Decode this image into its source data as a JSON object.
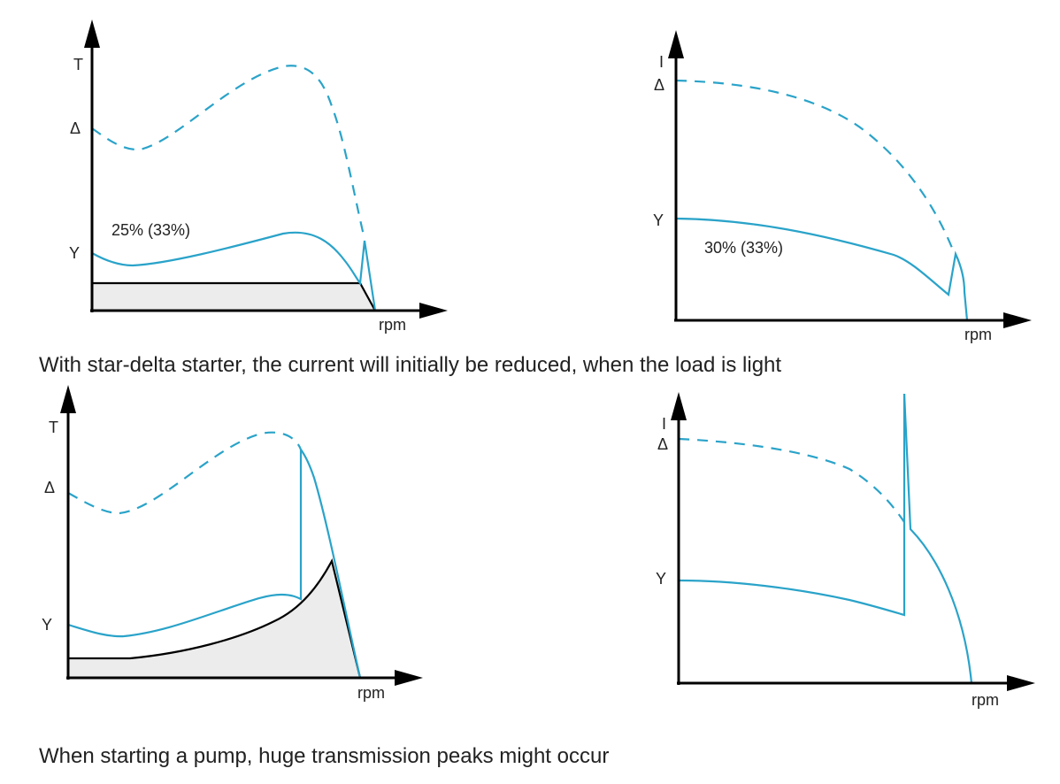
{
  "colors": {
    "curve": "#2aa3c9",
    "axis": "#000000",
    "load_fill": "#ececec"
  },
  "panel_top_left": {
    "y_axis": "T",
    "delta_label": "Δ",
    "star_label": "Y",
    "annotation": "25% (33%)",
    "x_axis": "rpm"
  },
  "panel_top_right": {
    "y_axis": "I",
    "delta_label": "Δ",
    "star_label": "Y",
    "annotation": "30% (33%)",
    "x_axis": "rpm"
  },
  "caption_top": "With star-delta starter, the current will initially be reduced, when the load is light",
  "panel_bottom_left": {
    "y_axis": "T",
    "delta_label": "Δ",
    "star_label": "Y",
    "x_axis": "rpm"
  },
  "panel_bottom_right": {
    "y_axis": "I",
    "delta_label": "Δ",
    "star_label": "Y",
    "x_axis": "rpm"
  },
  "caption_bottom": "When starting a pump, huge transmission peaks might occur"
}
